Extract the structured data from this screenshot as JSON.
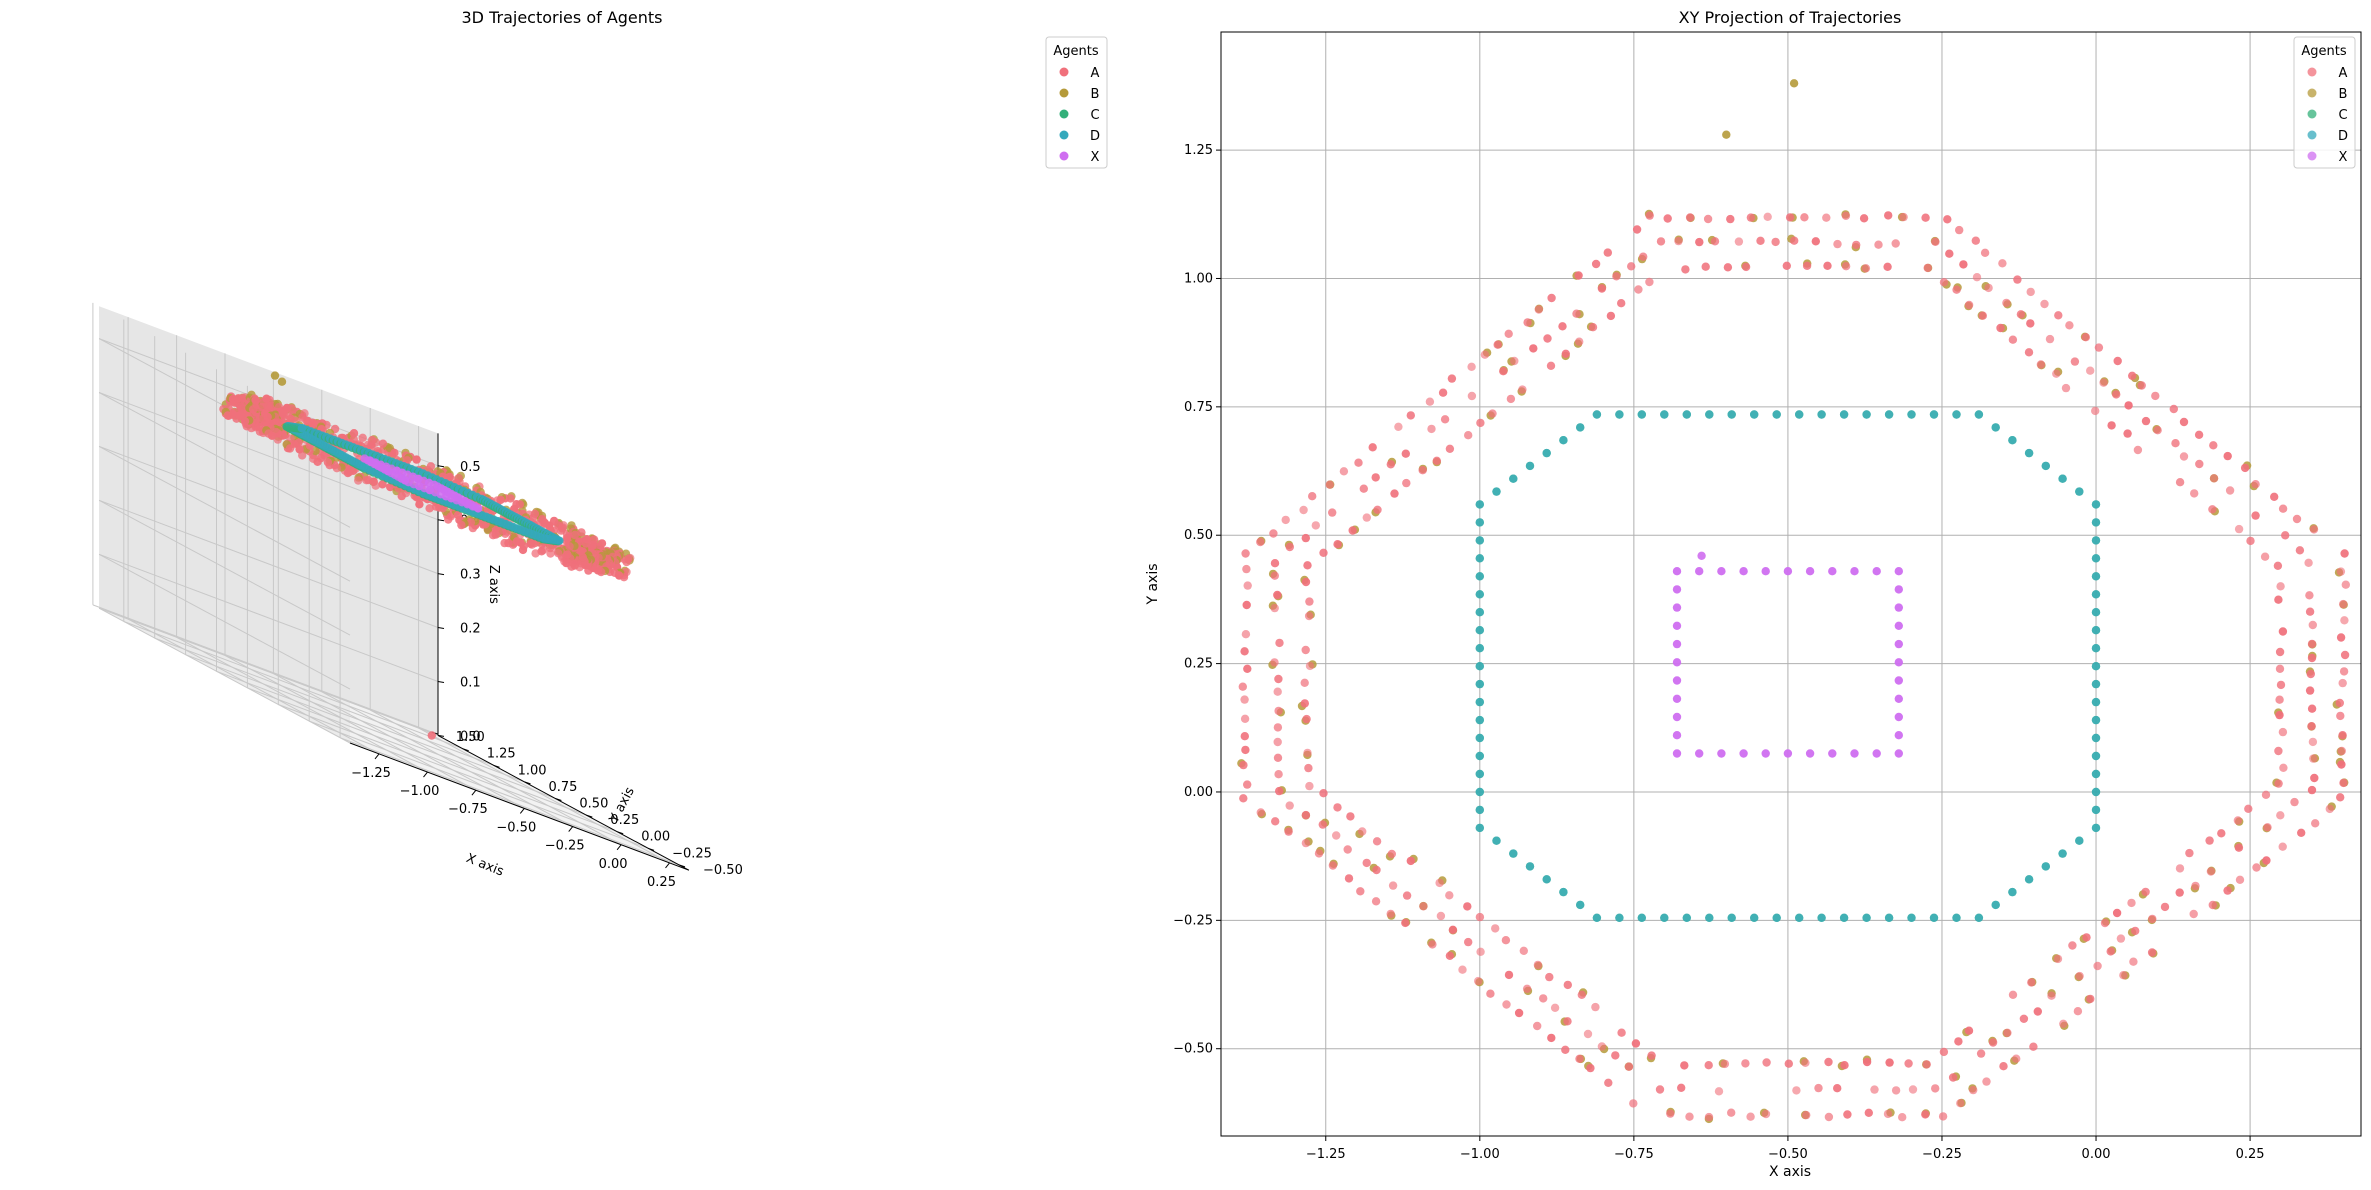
{
  "chart_data": [
    {
      "type": "scatter",
      "projection": "3d",
      "title": "3D Trajectories of Agents",
      "xlabel": "X axis",
      "ylabel": "Y axis",
      "zlabel": "Z axis",
      "xlim": [
        -1.4,
        0.35
      ],
      "ylim": [
        -0.58,
        1.45
      ],
      "zlim": [
        0,
        0.56
      ],
      "x_ticks": [
        -1.25,
        -1.0,
        -0.75,
        -0.5,
        -0.25,
        0.0,
        0.25
      ],
      "x_tick_labels": [
        "−1.25",
        "−1.00",
        "−0.75",
        "−0.50",
        "−0.25",
        "0.00",
        "0.25"
      ],
      "y_ticks": [
        -0.5,
        -0.25,
        0.0,
        0.25,
        0.5,
        0.75,
        1.0,
        1.25,
        1.5
      ],
      "y_tick_labels": [
        "−0.50",
        "−0.25",
        "0.00",
        "0.25",
        "0.50",
        "0.75",
        "1.00",
        "1.25",
        "1.50"
      ],
      "z_ticks": [
        0.0,
        0.1,
        0.2,
        0.3,
        0.4,
        0.5
      ],
      "z_tick_labels": [
        "0.0",
        "0.1",
        "0.2",
        "0.3",
        "0.4",
        "0.5"
      ],
      "grid": true,
      "legend": {
        "title": "Agents",
        "position": "top-right",
        "entries": [
          "A",
          "B",
          "C",
          "D",
          "X"
        ]
      },
      "series": [
        {
          "name": "A",
          "color": "#f0707b",
          "path": "outer-octagon",
          "z_range": [
            0.48,
            0.52
          ],
          "outliers": [
            {
              "x": -0.62,
              "y": -0.02,
              "z": 0.05
            }
          ]
        },
        {
          "name": "B",
          "color": "#b59a3a",
          "path": "outer-octagon",
          "z_range": [
            0.48,
            0.52
          ],
          "outliers": [
            {
              "x": -0.6,
              "y": 1.28,
              "z": 0.56
            },
            {
              "x": -0.5,
              "y": 1.38,
              "z": 0.55
            }
          ]
        },
        {
          "name": "C",
          "color": "#33b07a",
          "path": "middle-octagon",
          "z": 0.5
        },
        {
          "name": "D",
          "color": "#35a9bc",
          "path": "middle-octagon",
          "z": 0.5
        },
        {
          "name": "X",
          "color": "#cf6ef0",
          "path": "inner-square",
          "z": 0.5
        }
      ]
    },
    {
      "type": "scatter",
      "title": "XY Projection of Trajectories",
      "xlabel": "X axis",
      "ylabel": "Y axis",
      "xlim": [
        -1.42,
        0.43
      ],
      "ylim": [
        -0.67,
        1.48
      ],
      "x_ticks": [
        -1.25,
        -1.0,
        -0.75,
        -0.5,
        -0.25,
        0.0,
        0.25
      ],
      "x_tick_labels": [
        "−1.25",
        "−1.00",
        "−0.75",
        "−0.50",
        "−0.25",
        "0.00",
        "0.25"
      ],
      "y_ticks": [
        -0.5,
        -0.25,
        0.0,
        0.25,
        0.5,
        0.75,
        1.0,
        1.25
      ],
      "y_tick_labels": [
        "−0.50",
        "−0.25",
        "0.00",
        "0.25",
        "0.50",
        "0.75",
        "1.00",
        "1.25"
      ],
      "grid": true,
      "legend": {
        "title": "Agents",
        "position": "top-right",
        "entries": [
          "A",
          "B",
          "C",
          "D",
          "X"
        ]
      },
      "series": [
        {
          "name": "A",
          "color": "#f0707b",
          "path": "outer-octagon-band"
        },
        {
          "name": "B",
          "color": "#b59a3a",
          "path": "outer-octagon-band",
          "outliers": [
            {
              "x": -0.6,
              "y": 1.28
            },
            {
              "x": -0.49,
              "y": 1.38
            }
          ]
        },
        {
          "name": "C",
          "color": "#33b07a",
          "path": "middle-octagon"
        },
        {
          "name": "D",
          "color": "#35a9bc",
          "path": "middle-octagon"
        },
        {
          "name": "X",
          "color": "#cf6ef0",
          "path": "inner-square",
          "outliers": [
            {
              "x": -0.64,
              "y": 0.46
            }
          ]
        }
      ],
      "shapes": {
        "outer-octagon-band": [
          [
            -0.71,
            1.07
          ],
          [
            -0.26,
            1.07
          ],
          [
            0.35,
            0.45
          ],
          [
            0.35,
            0.0
          ],
          [
            -0.26,
            -0.58
          ],
          [
            -0.71,
            -0.58
          ],
          [
            -1.33,
            0.0
          ],
          [
            -1.33,
            0.45
          ]
        ],
        "middle-octagon": [
          [
            -0.81,
            0.735
          ],
          [
            -0.19,
            0.735
          ],
          [
            0.0,
            0.56
          ],
          [
            0.0,
            -0.07
          ],
          [
            -0.19,
            -0.245
          ],
          [
            -0.81,
            -0.245
          ],
          [
            -1.0,
            -0.07
          ],
          [
            -1.0,
            0.56
          ]
        ],
        "inner-square": [
          [
            -0.68,
            0.43
          ],
          [
            -0.32,
            0.43
          ],
          [
            -0.32,
            0.075
          ],
          [
            -0.68,
            0.075
          ]
        ]
      }
    }
  ]
}
